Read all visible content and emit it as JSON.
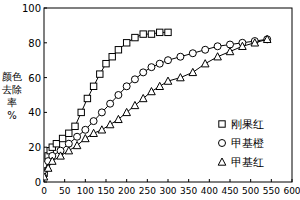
{
  "chart_data": {
    "type": "line",
    "y_label": "颜色去除率%",
    "xlim": [
      0,
      600
    ],
    "xticks": [
      0,
      50,
      100,
      150,
      200,
      250,
      300,
      350,
      400,
      450,
      500,
      550,
      600
    ],
    "ylim": [
      0,
      100
    ],
    "yticks": [
      0,
      20,
      40,
      60,
      80,
      100
    ],
    "legend": "lower-right",
    "series": [
      {
        "name": "刚果红",
        "color": "#000000",
        "marker": "square",
        "line_style": "solid",
        "x": [
          0,
          5,
          10,
          15,
          20,
          30,
          45,
          60,
          75,
          90,
          105,
          120,
          135,
          150,
          165,
          180,
          200,
          220,
          240,
          260,
          280,
          300
        ],
        "values": [
          5,
          10,
          15,
          18,
          20,
          22,
          25,
          28,
          32,
          40,
          48,
          55,
          62,
          68,
          72,
          76,
          80,
          83,
          85,
          85,
          86,
          86
        ]
      },
      {
        "name": "甲基橙",
        "color": "#000000",
        "marker": "circle",
        "line_style": "solid",
        "x": [
          0,
          10,
          20,
          40,
          60,
          80,
          100,
          120,
          140,
          160,
          180,
          200,
          220,
          240,
          260,
          280,
          300,
          330,
          360,
          390,
          420,
          450,
          480,
          510,
          540
        ],
        "values": [
          5,
          12,
          15,
          18,
          22,
          26,
          30,
          35,
          40,
          45,
          50,
          55,
          59,
          63,
          66,
          68,
          70,
          72,
          74,
          76,
          78,
          79,
          80,
          81,
          82
        ]
      },
      {
        "name": "甲基红",
        "color": "#000000",
        "marker": "triangle",
        "line_style": "solid",
        "x": [
          0,
          10,
          20,
          40,
          60,
          80,
          100,
          120,
          140,
          160,
          180,
          200,
          220,
          240,
          260,
          280,
          300,
          330,
          360,
          390,
          420,
          450,
          480,
          510,
          540
        ],
        "values": [
          3,
          8,
          12,
          15,
          18,
          21,
          25,
          28,
          30,
          33,
          36,
          40,
          44,
          48,
          52,
          55,
          58,
          60,
          63,
          68,
          72,
          75,
          78,
          80,
          82
        ]
      }
    ]
  }
}
